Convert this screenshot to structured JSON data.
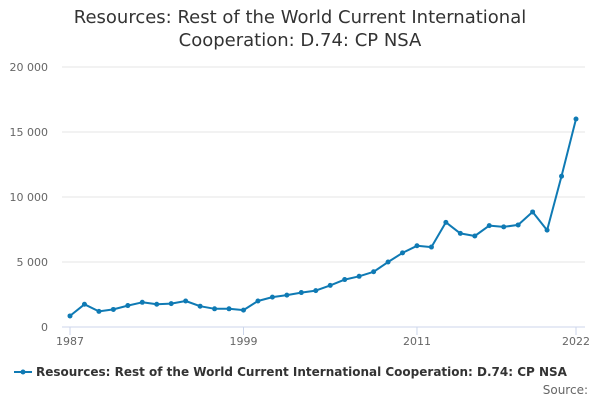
{
  "chart_data": {
    "type": "line",
    "title_lines": [
      "Resources: Rest of the World Current International",
      "Cooperation: D.74: CP NSA"
    ],
    "x": [
      1987,
      1988,
      1989,
      1990,
      1991,
      1992,
      1993,
      1994,
      1995,
      1996,
      1997,
      1998,
      1999,
      2000,
      2001,
      2002,
      2003,
      2004,
      2005,
      2006,
      2007,
      2008,
      2009,
      2010,
      2011,
      2012,
      2013,
      2014,
      2015,
      2016,
      2017,
      2018,
      2019,
      2020,
      2021,
      2022
    ],
    "series": [
      {
        "name": "Resources: Rest of the World Current International Cooperation: D.74: CP NSA",
        "color": "#0f7ab4",
        "values": [
          850,
          1750,
          1200,
          1350,
          1650,
          1900,
          1750,
          1800,
          2000,
          1600,
          1400,
          1400,
          1300,
          2000,
          2300,
          2450,
          2650,
          2800,
          3200,
          3650,
          3900,
          4250,
          5000,
          5700,
          6250,
          6150,
          8050,
          7200,
          7000,
          7800,
          7700,
          7850,
          8850,
          7450,
          11600,
          16000
        ]
      }
    ],
    "ylim": [
      0,
      20000
    ],
    "yticks": [
      0,
      5000,
      10000,
      15000,
      20000
    ],
    "ytick_labels": [
      "0",
      "5 000",
      "10 000",
      "15 000",
      "20 000"
    ],
    "xticks": [
      1987,
      1999,
      2011,
      2022
    ],
    "xtick_labels": [
      "1987",
      "1999",
      "2011",
      "2022"
    ],
    "xlabel": "",
    "ylabel": "",
    "legend_position": "bottom-left",
    "source_label": "Source:"
  }
}
